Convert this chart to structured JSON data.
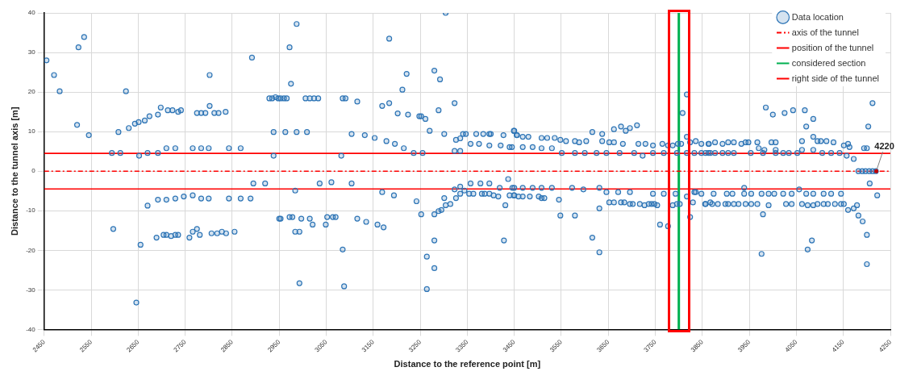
{
  "chart_data": {
    "type": "scatter",
    "xlabel": "Distance to the reference point [m]",
    "ylabel": "Distance to the tunnel axis [m]",
    "xlim": [
      2450,
      4250
    ],
    "xticks": [
      2450,
      2550,
      2650,
      2750,
      2850,
      2950,
      3050,
      3150,
      3250,
      3350,
      3450,
      3550,
      3650,
      3750,
      3850,
      3950,
      4050,
      4150,
      4250
    ],
    "ylim": [
      -40,
      40
    ],
    "yticks": [
      -40,
      -30,
      -20,
      -10,
      0,
      10,
      20,
      30,
      40
    ],
    "grid": true,
    "legend": "top right",
    "annotations": [
      {
        "text": "4220",
        "x": 4220,
        "y": 0
      }
    ],
    "series": [
      {
        "name": "Data location",
        "type": "scatter",
        "color": "#2e75b6",
        "marker": "circle",
        "x": [
          2455,
          2471,
          2483,
          2523,
          2535,
          2520,
          2545,
          2624,
          2608,
          2630,
          2643,
          2651,
          2664,
          2674,
          2692,
          2698,
          2713,
          2723,
          2735,
          2741,
          2775,
          2784,
          2793,
          2802,
          2802,
          2812,
          2821,
          2836,
          2594,
          2612,
          2652,
          2670,
          2692,
          2710,
          2729,
          2766,
          2784,
          2800,
          2843,
          2868,
          2892,
          2895,
          2920,
          2889,
          2868,
          2843,
          2800,
          2784,
          2766,
          2747,
          2729,
          2710,
          2692,
          2670,
          2597,
          2655,
          2646,
          2689,
          2704,
          2710,
          2720,
          2729,
          2735,
          2759,
          2766,
          2775,
          2781,
          2806,
          2818,
          2828,
          2837,
          2855,
          2929,
          2935,
          2942,
          2948,
          2938,
          2938,
          2950,
          2953,
          2960,
          2966,
          3006,
          3015,
          3024,
          3033,
          3085,
          3091,
          3116,
          2972,
          2987,
          2975,
          2963,
          2987,
          3009,
          3082,
          3104,
          3132,
          3153,
          3178,
          3196,
          3215,
          3236,
          3255,
          3169,
          3184,
          3184,
          3202,
          3212,
          3221,
          3224,
          3248,
          3252,
          3261,
          3270,
          3280,
          3292,
          3289,
          3304,
          3301,
          3323,
          3323,
          3326,
          3335,
          3335,
          3341,
          3347,
          3357,
          3369,
          3375,
          3384,
          3397,
          3400,
          3397,
          3421,
          3427,
          3440,
          3449,
          3455,
          2953,
          2972,
          2978,
          2984,
          2984,
          2993,
          2997,
          2993,
          3015,
          3021,
          3036,
          3049,
          3052,
          3061,
          3064,
          3070,
          3085,
          3088,
          3104,
          3116,
          3135,
          3159,
          3172,
          3169,
          3194,
          3242,
          3252,
          3264,
          3264,
          3280,
          3280,
          3280,
          3289,
          3295,
          3301,
          3304,
          3314,
          3323,
          3326,
          3335,
          3335,
          3344,
          3354,
          3357,
          3363,
          3378,
          3381,
          3387,
          3397,
          3397,
          3406,
          3416,
          3419,
          3431,
          3428,
          3437,
          3440,
          3446,
          3449,
          3459,
          3450,
          3456,
          3468,
          3480,
          3445,
          3468,
          3489,
          3508,
          3530,
          3508,
          3520,
          3536,
          3548,
          3560,
          3551,
          3579,
          3600,
          3625,
          3646,
          3674,
          3705,
          3723,
          3745,
          3768,
          3579,
          3588,
          3603,
          3616,
          3637,
          3637,
          3652,
          3662,
          3662,
          3677,
          3681,
          3687,
          3696,
          3711,
          3714,
          3729,
          3745,
          3765,
          3777,
          3787,
          3798,
          3805,
          3808,
          3817,
          3817,
          3824,
          3836,
          3848,
          3864,
          3817,
          3833,
          3848,
          3857,
          3867,
          3796,
          3450,
          3468,
          3483,
          3502,
          3508,
          3514,
          3450,
          3468,
          3489,
          3508,
          3530,
          3545,
          3548,
          3573,
          3579,
          3597,
          3616,
          3631,
          3631,
          3631,
          3646,
          3652,
          3662,
          3671,
          3677,
          3684,
          3696,
          3696,
          3702,
          3717,
          3727,
          3736,
          3742,
          3748,
          3754,
          3745,
          3760,
          3768,
          3777,
          3787,
          3793,
          3796,
          3802,
          3817,
          3824,
          3830,
          3833,
          3836,
          3848,
          3857,
          3867,
          3863,
          3877,
          3893,
          3905,
          3917,
          3933,
          3942,
          3948,
          3967,
          3970,
          3982,
          3997,
          4006,
          4006,
          4062,
          4062,
          4086,
          4086,
          4095,
          4102,
          4114,
          4129,
          4151,
          4160,
          4163,
          4194,
          4200,
          3863,
          3877,
          3893,
          3905,
          3917,
          3953,
          3979,
          4006,
          4022,
          4034,
          4052,
          4105,
          4124,
          4142,
          4157,
          4172,
          3985,
          4000,
          4025,
          4043,
          4068,
          4071,
          4086,
          4203,
          4212,
          4182,
          4190,
          4197,
          4205,
          4212,
          4219,
          4206,
          4222,
          3874,
          3902,
          3914,
          3939,
          3954,
          3976,
          3991,
          4003,
          4022,
          4040,
          4071,
          4086,
          4108,
          4124,
          4145,
          3939,
          4056,
          3856,
          3871,
          3883,
          3899,
          3905,
          3917,
          3927,
          3942,
          3954,
          3967,
          3991,
          4028,
          4040,
          4062,
          4074,
          4086,
          4095,
          4108,
          4117,
          4132,
          4145,
          4151,
          4160,
          4172,
          4179,
          3979,
          3976,
          4074,
          4083,
          4182,
          4191,
          4200,
          4200
        ],
        "values": [
          28.0,
          24.3,
          20.2,
          31.3,
          33.9,
          11.7,
          9.1,
          20.2,
          9.9,
          10.9,
          12.0,
          12.4,
          12.8,
          13.9,
          14.3,
          16.1,
          15.4,
          15.4,
          15.0,
          15.4,
          14.7,
          14.7,
          14.7,
          16.5,
          24.3,
          14.7,
          14.7,
          15.0,
          4.6,
          4.6,
          3.9,
          4.6,
          4.6,
          5.8,
          5.8,
          5.8,
          5.8,
          5.8,
          5.8,
          5.8,
          28.7,
          -3.1,
          -3.1,
          -6.9,
          -6.9,
          -6.9,
          -6.9,
          -6.9,
          -6.1,
          -6.4,
          -6.9,
          -7.2,
          -7.2,
          -8.7,
          -14.6,
          -18.6,
          -33.2,
          -16.8,
          -16.1,
          -16.1,
          -16.4,
          -16.1,
          -16.1,
          -16.8,
          -15.3,
          -14.6,
          -16.1,
          -15.7,
          -15.7,
          -15.3,
          -15.7,
          -15.3,
          18.4,
          18.4,
          18.7,
          18.4,
          9.9,
          3.9,
          -12.0,
          18.4,
          18.4,
          18.4,
          18.4,
          18.4,
          18.4,
          18.4,
          18.4,
          18.4,
          17.6,
          31.3,
          37.2,
          22.1,
          9.9,
          9.9,
          9.9,
          3.9,
          9.4,
          9.1,
          8.4,
          7.6,
          6.9,
          5.8,
          4.6,
          4.6,
          16.5,
          17.2,
          33.5,
          14.6,
          20.6,
          24.6,
          14.3,
          13.9,
          13.9,
          13.2,
          10.2,
          25.4,
          23.2,
          15.4,
          40,
          9.4,
          17.2,
          5.1,
          7.9,
          8.3,
          5.1,
          9.4,
          9.4,
          6.9,
          9.4,
          6.9,
          9.4,
          9.4,
          9.4,
          6.5,
          6.5,
          9.1,
          6.1,
          10.2,
          9.1,
          -12.0,
          -11.6,
          -11.6,
          -4.9,
          -15.3,
          -15.3,
          -12.0,
          -28.3,
          -12.0,
          -13.5,
          -3.1,
          -13.5,
          -11.6,
          -2.8,
          -11.6,
          -11.6,
          -19.8,
          -29.1,
          -3.1,
          -12.0,
          -12.8,
          -13.5,
          -14.2,
          -5.3,
          -6.1,
          -7.6,
          -10.9,
          -21.6,
          -29.8,
          -17.5,
          -24.5,
          -10.9,
          -10.1,
          -9.8,
          -6.8,
          -8.6,
          -8.3,
          -4.6,
          -6.8,
          -3.9,
          -5.7,
          -4.9,
          -5.7,
          -3.1,
          -5.7,
          -3.1,
          -5.7,
          -5.7,
          -3.1,
          -5.7,
          -6.1,
          -6.4,
          -4.2,
          -8.6,
          -17.5,
          -2.0,
          -6.1,
          -4.2,
          -6.1,
          -6.4,
          10.2,
          9.1,
          8.7,
          8.7,
          6.1,
          6.1,
          6.1,
          5.8,
          5.8,
          8.4,
          8.4,
          8.4,
          7.9,
          7.6,
          4.6,
          4.6,
          4.6,
          4.6,
          4.6,
          4.6,
          4.6,
          3.9,
          4.6,
          4.6,
          7.6,
          7.3,
          7.6,
          9.9,
          9.4,
          7.6,
          7.3,
          10.6,
          7.3,
          11.3,
          6.9,
          10.2,
          10.9,
          11.6,
          6.9,
          6.9,
          6.5,
          6.9,
          6.5,
          6.5,
          6.9,
          6.9,
          14.7,
          19.4,
          8.7,
          7.3,
          7.6,
          6.9,
          6.9,
          4.6,
          4.6,
          4.6,
          4.6,
          4.6,
          4.6,
          -6.1,
          -6.4,
          -6.4,
          -6.4,
          -6.8,
          -6.8,
          -4.2,
          -4.2,
          -4.2,
          -4.2,
          -4.2,
          -7.2,
          -11.2,
          -4.2,
          -11.2,
          -4.6,
          -16.8,
          -4.2,
          -9.4,
          -20.5,
          -5.3,
          -7.9,
          -7.9,
          -5.3,
          -7.9,
          -7.9,
          -5.3,
          -8.3,
          -8.3,
          -8.3,
          -8.6,
          -8.3,
          -8.3,
          -8.3,
          -8.6,
          -5.7,
          -13.5,
          -5.7,
          -13.9,
          -8.6,
          -5.7,
          -8.3,
          -8.3,
          -6.4,
          -11.6,
          -7.9,
          -5.3,
          -5.3,
          -5.7,
          -8.3,
          -7.9,
          6.9,
          7.3,
          6.9,
          7.3,
          7.3,
          6.9,
          7.3,
          7.3,
          7.3,
          5.8,
          5.4,
          7.3,
          7.3,
          5.4,
          7.6,
          5.4,
          8.7,
          5.4,
          7.6,
          7.6,
          7.6,
          7.3,
          6.5,
          6.9,
          6.1,
          5.8,
          5.8,
          4.6,
          4.6,
          4.6,
          4.6,
          4.6,
          4.6,
          4.6,
          4.6,
          4.6,
          4.6,
          4.6,
          4.6,
          4.6,
          4.6,
          3.9,
          3.1,
          16.1,
          14.3,
          14.7,
          15.4,
          15.4,
          11.3,
          13.2,
          11.3,
          17.2,
          0,
          0,
          0,
          0,
          0,
          0,
          -3.1,
          -6.1,
          -5.7,
          -5.7,
          -5.7,
          -5.7,
          -5.7,
          -5.7,
          -5.7,
          -5.7,
          -5.7,
          -5.7,
          -5.7,
          -5.7,
          -5.7,
          -5.7,
          -5.7,
          -4.2,
          -4.6,
          -8.3,
          -8.3,
          -8.3,
          -8.3,
          -8.3,
          -8.3,
          -8.3,
          -8.3,
          -8.3,
          -8.3,
          -8.6,
          -8.3,
          -8.3,
          -8.3,
          -8.6,
          -8.6,
          -8.3,
          -8.3,
          -8.3,
          -8.3,
          -8.3,
          -8.3,
          -9.8,
          -9.4,
          -8.6,
          -10.9,
          -20.9,
          -19.8,
          -17.5,
          -11.2,
          -12.7,
          -16.1,
          -23.5
        ]
      },
      {
        "name": "axis of the tunnel",
        "type": "line",
        "color": "#ff0000",
        "line_style": "dashed",
        "x": [
          2450,
          4250
        ],
        "values": [
          0,
          0
        ]
      },
      {
        "name": "position of the tunnel",
        "type": "line",
        "color": "#ff0000",
        "line_style": "solid",
        "x": [
          2450,
          4250
        ],
        "values": [
          4.5,
          4.5
        ]
      },
      {
        "name": "considered section",
        "type": "line",
        "color": "#00b050",
        "line_style": "solid",
        "x": [
          3800,
          3800
        ],
        "values": [
          -40,
          40
        ]
      },
      {
        "name": "right side of the tunnel",
        "type": "line",
        "color": "#ff0000",
        "line_style": "solid",
        "x": [
          2450,
          4250
        ],
        "values": [
          -4.5,
          -4.5
        ]
      }
    ]
  }
}
